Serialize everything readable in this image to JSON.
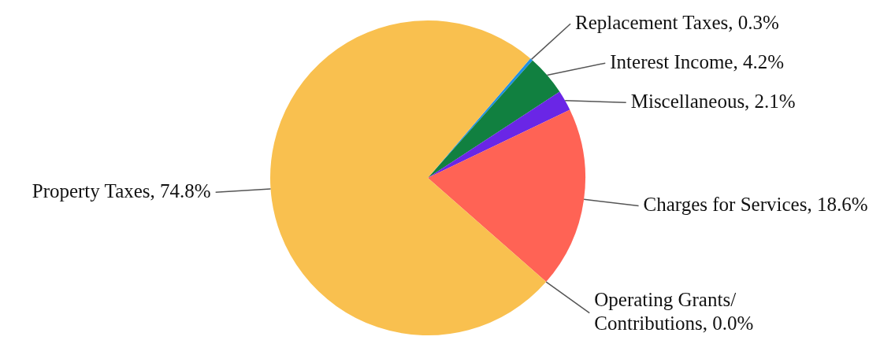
{
  "chart_data": {
    "type": "pie",
    "categories": [
      "Replacement Taxes",
      "Interest Income",
      "Miscellaneous",
      "Charges for Services",
      "Operating Grants/Contributions",
      "Property Taxes"
    ],
    "values": [
      0.3,
      4.2,
      2.1,
      18.6,
      0.0,
      74.8
    ],
    "value_labels": [
      "0.3%",
      "4.2%",
      "2.1%",
      "18.6%",
      "0.0%",
      "74.8%"
    ],
    "colors": [
      "#1e90e6",
      "#118040",
      "#6a26e6",
      "#ff6355",
      "#999999",
      "#f9c04f"
    ]
  }
}
